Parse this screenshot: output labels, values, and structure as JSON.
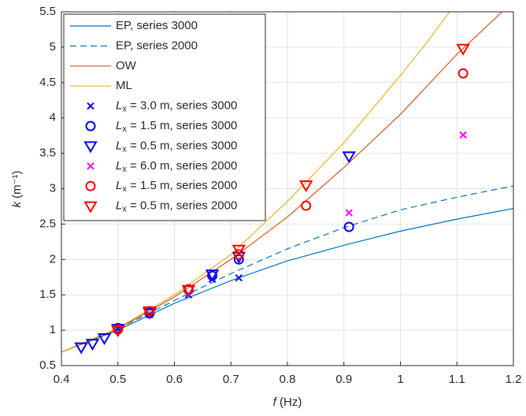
{
  "chart_data": {
    "type": "scatter",
    "x_label": "f (Hz)",
    "y_label": "k (m⁻¹)",
    "xlim": [
      0.4,
      1.2
    ],
    "ylim": [
      0.5,
      5.5
    ],
    "xticks": [
      0.4,
      0.5,
      0.6,
      0.7,
      0.8,
      0.9,
      1,
      1.1,
      1.2
    ],
    "yticks": [
      0.5,
      1,
      1.5,
      2,
      2.5,
      3,
      3.5,
      4,
      4.5,
      5,
      5.5
    ],
    "grid": true,
    "legend": "top-left",
    "series": [
      {
        "name": "EP, series 3000",
        "kind": "line",
        "dash": false,
        "color": "#0072bd",
        "x": [
          0.4,
          0.5,
          0.6,
          0.7,
          0.8,
          0.9,
          1.0,
          1.1,
          1.2
        ],
        "values": [
          0.69,
          1.0,
          1.38,
          1.7,
          1.98,
          2.2,
          2.4,
          2.57,
          2.72
        ]
      },
      {
        "name": "EP, series 2000",
        "kind": "line",
        "dash": true,
        "color": "#0072bd",
        "x": [
          0.4,
          0.5,
          0.6,
          0.7,
          0.8,
          0.9,
          1.0,
          1.1,
          1.2
        ],
        "values": [
          0.69,
          1.02,
          1.42,
          1.8,
          2.15,
          2.45,
          2.7,
          2.88,
          3.04
        ]
      },
      {
        "name": "OW",
        "kind": "line",
        "dash": false,
        "color": "#d95319",
        "x": [
          0.4,
          0.5,
          0.6,
          0.7,
          0.8,
          0.9,
          1.0,
          1.1,
          1.18
        ],
        "values": [
          0.69,
          1.02,
          1.47,
          2.0,
          2.6,
          3.3,
          4.05,
          4.9,
          5.5
        ]
      },
      {
        "name": "ML",
        "kind": "line",
        "dash": false,
        "color": "#edb120",
        "x": [
          0.4,
          0.5,
          0.6,
          0.7,
          0.8,
          0.9,
          1.0,
          1.05,
          1.087
        ],
        "values": [
          0.69,
          1.03,
          1.5,
          2.07,
          2.82,
          3.65,
          4.6,
          5.1,
          5.5
        ]
      },
      {
        "name": "Lx = 3.0 m, series 3000",
        "kind": "cross",
        "color": "#0000ff",
        "x": [
          0.5,
          0.556,
          0.625,
          0.667,
          0.714
        ],
        "values": [
          1.02,
          1.22,
          1.5,
          1.72,
          1.74
        ]
      },
      {
        "name": "Lx = 1.5 m, series 3000",
        "kind": "circle",
        "color": "#0000ff",
        "x": [
          0.5,
          0.556,
          0.625,
          0.667,
          0.714,
          0.909
        ],
        "values": [
          1.03,
          1.24,
          1.57,
          1.77,
          2.0,
          2.46
        ]
      },
      {
        "name": "Lx = 0.5 m, series 3000",
        "kind": "triangle",
        "color": "#0000ff",
        "x": [
          0.435,
          0.455,
          0.476,
          0.5,
          0.556,
          0.625,
          0.667,
          0.714,
          0.909
        ],
        "values": [
          0.76,
          0.81,
          0.89,
          1.02,
          1.25,
          1.57,
          1.79,
          2.04,
          3.46
        ]
      },
      {
        "name": "Lx = 6.0 m, series 2000",
        "kind": "cross",
        "color": "#ff00ff",
        "x": [
          0.909,
          1.111
        ],
        "values": [
          2.66,
          3.76
        ]
      },
      {
        "name": "Lx = 1.5 m, series 2000",
        "kind": "circle",
        "color": "#ff0000",
        "x": [
          0.5,
          0.556,
          0.625,
          0.714,
          0.833,
          1.111
        ],
        "values": [
          1.01,
          1.27,
          1.58,
          2.07,
          2.76,
          4.63
        ]
      },
      {
        "name": "Lx = 0.5 m, series 2000",
        "kind": "triangle",
        "color": "#ff0000",
        "x": [
          0.5,
          0.556,
          0.625,
          0.714,
          0.833,
          1.111
        ],
        "values": [
          1.0,
          1.27,
          1.57,
          2.14,
          3.05,
          4.98
        ]
      }
    ]
  }
}
